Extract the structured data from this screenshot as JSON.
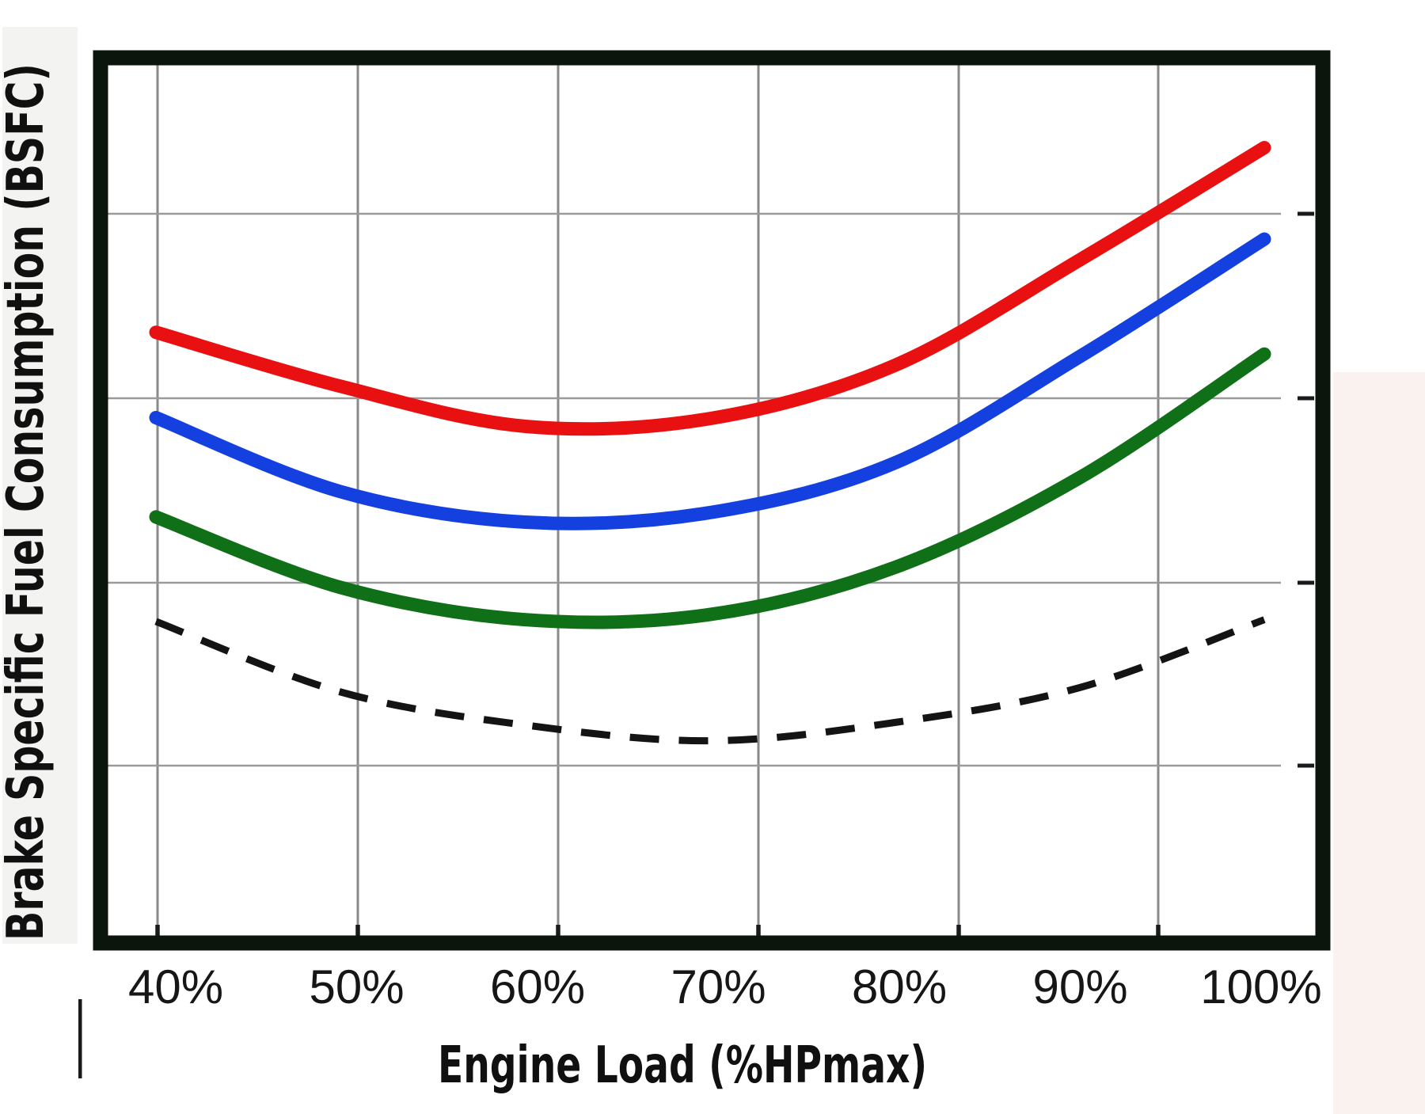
{
  "figure": {
    "background": "#ffffff",
    "left_band_color": "#f3f3f1",
    "right_tint_color": "#faf2ef",
    "border_color": "#0c150c",
    "grid_color_vertical": "#8a8a8a",
    "grid_color_horizontal": "#9a9a9a",
    "tick_nub_color": "#1a1a1a",
    "label_color": "#161616",
    "title_color": "#101010"
  },
  "chart_data": {
    "type": "line",
    "title": "",
    "xlabel": "Engine Load (%HPmax)",
    "ylabel": "Brake Specific Fuel Consumption (BSFC)",
    "x": [
      40,
      50,
      60,
      70,
      80,
      90,
      100
    ],
    "x_tick_labels": [
      "40%",
      "50%",
      "60%",
      "70%",
      "80%",
      "90%",
      "100%"
    ],
    "y_axis": {
      "tick_labels": "none",
      "units": "relative BSFC (no numeric scale shown); series values = fraction of plot height above bottom axis"
    },
    "grid": true,
    "legend": "none",
    "series": [
      {
        "name": "red-solid",
        "color": "#e81010",
        "line_style": "solid",
        "values": [
          0.693,
          0.631,
          0.585,
          0.594,
          0.655,
          0.776,
          0.905
        ]
      },
      {
        "name": "blue-solid",
        "color": "#1440e0",
        "line_style": "solid",
        "values": [
          0.595,
          0.51,
          0.475,
          0.486,
          0.543,
          0.665,
          0.8
        ]
      },
      {
        "name": "green-solid",
        "color": "#107018",
        "line_style": "solid",
        "values": [
          0.481,
          0.4,
          0.363,
          0.369,
          0.423,
          0.526,
          0.668
        ]
      },
      {
        "name": "black-dashed",
        "color": "#141414",
        "line_style": "dashed",
        "values": [
          0.361,
          0.28,
          0.242,
          0.224,
          0.245,
          0.285,
          0.363
        ]
      }
    ],
    "shape_note": "bathtub-shaped BSFC curves, minimum near 60-70% load, steep rise toward 100%"
  }
}
